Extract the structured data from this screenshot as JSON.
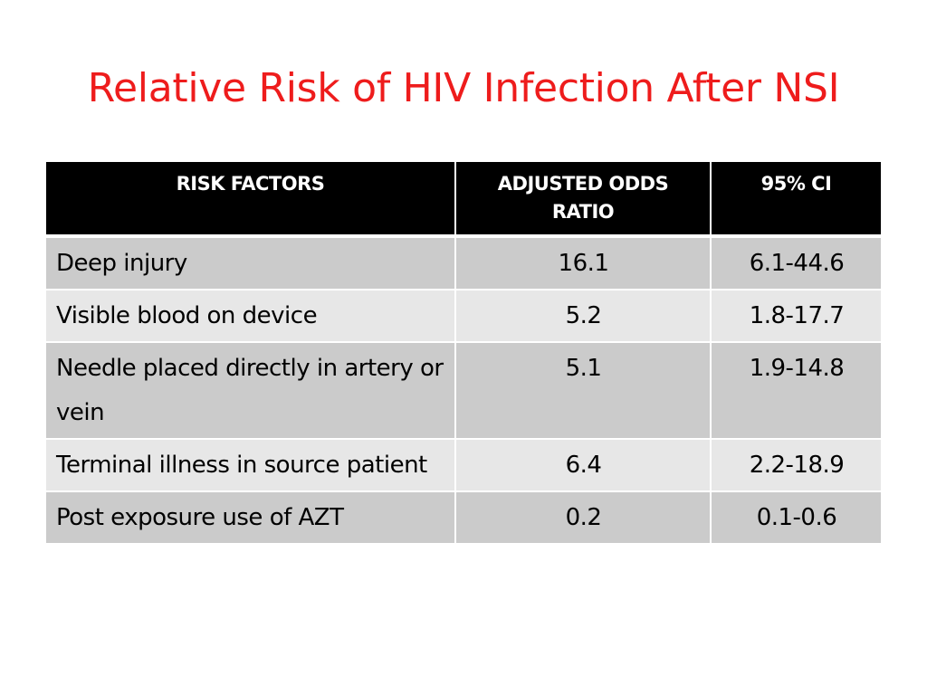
{
  "slide": {
    "title": "Relative Risk of HIV Infection After NSI"
  },
  "table": {
    "headers": [
      "RISK FACTORS",
      "ADJUSTED ODDS RATIO",
      "95% CI"
    ],
    "rows": [
      {
        "factor": "Deep injury",
        "odds_ratio": "16.1",
        "ci": "6.1-44.6"
      },
      {
        "factor": "Visible blood on device",
        "odds_ratio": "5.2",
        "ci": "1.8-17.7"
      },
      {
        "factor": "Needle placed directly in artery or vein",
        "odds_ratio": "5.1",
        "ci": "1.9-14.8"
      },
      {
        "factor": "Terminal illness in source patient",
        "odds_ratio": "6.4",
        "ci": "2.2-18.9"
      },
      {
        "factor": "Post exposure use of AZT",
        "odds_ratio": "0.2",
        "ci": "0.1-0.6"
      }
    ]
  },
  "colors": {
    "title": "#ee1c1c",
    "header_bg": "#000000",
    "header_text": "#ffffff",
    "row_band_dark": "#cbcbcb",
    "row_band_light": "#e7e7e7"
  }
}
